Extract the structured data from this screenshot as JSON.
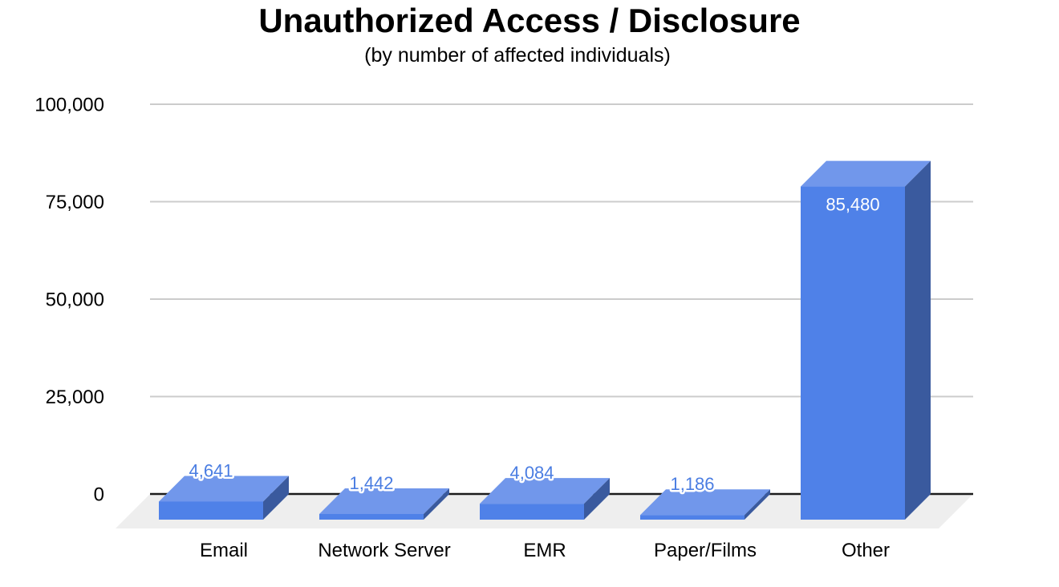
{
  "chart_data": {
    "type": "bar",
    "variant": "3d-column",
    "title": "Unauthorized Access / Disclosure",
    "subtitle": "(by number of affected individuals)",
    "categories": [
      "Email",
      "Network Server",
      "EMR",
      "Paper/Films",
      "Other"
    ],
    "values": [
      4641,
      1442,
      4084,
      1186,
      85480
    ],
    "value_labels": [
      "4,641",
      "1,442",
      "4,084",
      "1,186",
      "85,480"
    ],
    "ylabel": "",
    "xlabel": "",
    "ylim": [
      0,
      100000
    ],
    "yticks": {
      "values": [
        0,
        25000,
        50000,
        75000,
        100000
      ],
      "labels": [
        "0",
        "25,000",
        "50,000",
        "75,000",
        "100,000"
      ]
    },
    "grid": true,
    "legend": "none",
    "colors": {
      "bar_front": "#4f81e8",
      "bar_top": "#7197eb",
      "bar_side": "#3a5a9e",
      "label_outside": "#4a7de2",
      "label_outside_halo": "#ffffff",
      "label_inside": "#ffffff",
      "floor": "#eeeeee",
      "gridline": "#cccccc",
      "axis_line": "#1c1c1c",
      "text": "#000000"
    }
  }
}
